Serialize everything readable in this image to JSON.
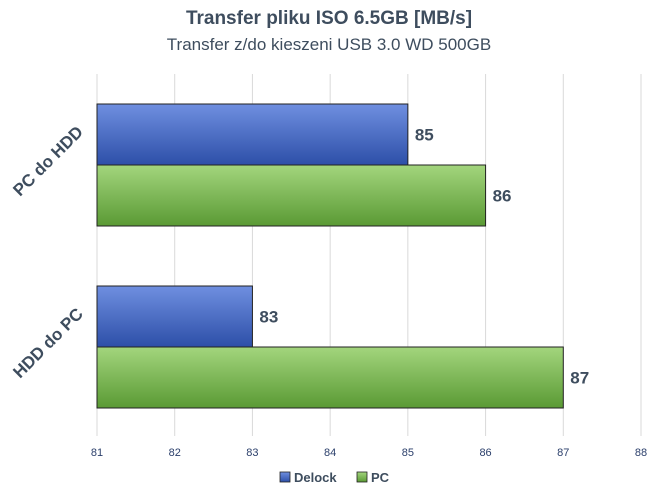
{
  "chart_data": {
    "type": "bar",
    "orientation": "horizontal",
    "title": "Transfer pliku ISO 6.5GB [MB/s]",
    "subtitle": "Transfer z/do kieszeni USB 3.0 WD 500GB",
    "categories": [
      "PC do HDD",
      "HDD do PC"
    ],
    "series": [
      {
        "name": "Delock",
        "values": [
          85,
          83
        ],
        "color": "#3f63c6"
      },
      {
        "name": "PC",
        "values": [
          86,
          87
        ],
        "color": "#6fb443"
      }
    ],
    "xlim": [
      81,
      88
    ],
    "xticks": [
      81,
      82,
      83,
      84,
      85,
      86,
      87,
      88
    ],
    "grid": true,
    "legend_position": "bottom"
  }
}
